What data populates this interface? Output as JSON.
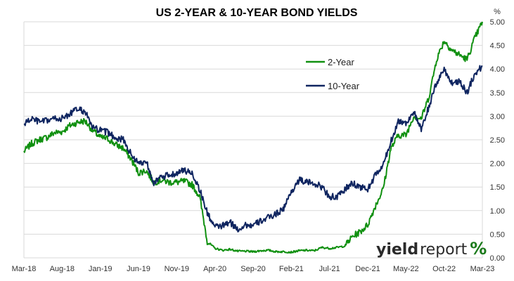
{
  "chart_data": {
    "type": "line",
    "title": "US 2-YEAR & 10-YEAR BOND YIELDS",
    "y_unit": "%",
    "ylim": [
      0,
      5
    ],
    "y_ticks": [
      "0.00",
      "0.50",
      "1.00",
      "1.50",
      "2.00",
      "2.50",
      "3.00",
      "3.50",
      "4.00",
      "4.50",
      "5.00"
    ],
    "x_ticks": [
      "Mar-18",
      "Aug-18",
      "Jan-19",
      "Jun-19",
      "Nov-19",
      "Apr-20",
      "Sep-20",
      "Feb-21",
      "Jul-21",
      "Dec-21",
      "May-22",
      "Oct-22",
      "Mar-23"
    ],
    "grid": "horizontal",
    "legend_position": "upper-middle-right",
    "x": [
      "Mar-18",
      "Apr-18",
      "May-18",
      "Jun-18",
      "Jul-18",
      "Aug-18",
      "Sep-18",
      "Oct-18",
      "Nov-18",
      "Dec-18",
      "Jan-19",
      "Feb-19",
      "Mar-19",
      "Apr-19",
      "May-19",
      "Jun-19",
      "Jul-19",
      "Aug-19",
      "Sep-19",
      "Oct-19",
      "Nov-19",
      "Dec-19",
      "Jan-20",
      "Feb-20",
      "Mar-20",
      "Apr-20",
      "May-20",
      "Jun-20",
      "Jul-20",
      "Aug-20",
      "Sep-20",
      "Oct-20",
      "Nov-20",
      "Dec-20",
      "Jan-21",
      "Feb-21",
      "Mar-21",
      "Apr-21",
      "May-21",
      "Jun-21",
      "Jul-21",
      "Aug-21",
      "Sep-21",
      "Oct-21",
      "Nov-21",
      "Dec-21",
      "Jan-22",
      "Feb-22",
      "Mar-22",
      "Apr-22",
      "May-22",
      "Jun-22",
      "Jul-22",
      "Aug-22",
      "Sep-22",
      "Oct-22",
      "Nov-22",
      "Dec-22",
      "Jan-23",
      "Feb-23",
      "Mar-23"
    ],
    "series": [
      {
        "name": "2-Year",
        "color": "#109010",
        "values": [
          2.25,
          2.42,
          2.5,
          2.55,
          2.65,
          2.67,
          2.8,
          2.87,
          2.9,
          2.7,
          2.55,
          2.52,
          2.4,
          2.32,
          2.1,
          1.8,
          1.85,
          1.6,
          1.65,
          1.6,
          1.6,
          1.62,
          1.55,
          1.3,
          0.35,
          0.2,
          0.16,
          0.18,
          0.14,
          0.14,
          0.13,
          0.15,
          0.16,
          0.13,
          0.13,
          0.12,
          0.15,
          0.16,
          0.15,
          0.22,
          0.2,
          0.22,
          0.25,
          0.45,
          0.55,
          0.7,
          1.1,
          1.45,
          2.3,
          2.6,
          2.6,
          3.0,
          2.95,
          3.4,
          4.2,
          4.6,
          4.4,
          4.3,
          4.2,
          4.65,
          5.0
        ]
      },
      {
        "name": "10-Year",
        "color": "#0f2560",
        "values": [
          2.83,
          2.95,
          2.88,
          2.9,
          2.95,
          2.95,
          3.05,
          3.15,
          3.1,
          2.75,
          2.7,
          2.65,
          2.55,
          2.5,
          2.2,
          2.0,
          2.05,
          1.6,
          1.7,
          1.75,
          1.8,
          1.85,
          1.8,
          1.45,
          0.95,
          0.65,
          0.68,
          0.75,
          0.6,
          0.7,
          0.68,
          0.78,
          0.85,
          0.93,
          1.05,
          1.4,
          1.65,
          1.6,
          1.58,
          1.5,
          1.3,
          1.28,
          1.45,
          1.58,
          1.5,
          1.45,
          1.75,
          1.95,
          2.45,
          2.9,
          2.85,
          3.1,
          2.7,
          3.2,
          3.7,
          4.0,
          3.7,
          3.75,
          3.5,
          3.9,
          4.05
        ]
      }
    ]
  },
  "watermark": {
    "part1": "yield",
    "part2": "report",
    "part3": "%"
  }
}
